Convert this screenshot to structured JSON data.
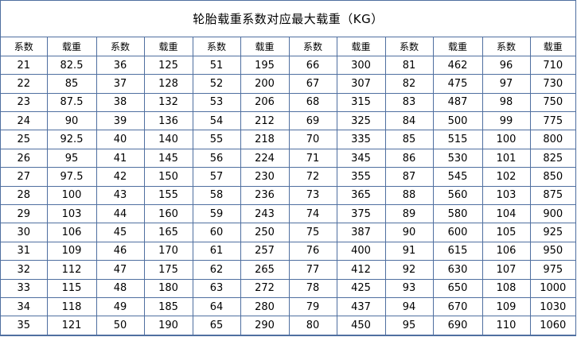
{
  "title": "轮胎载重系数对应最大载重（KG）",
  "headers": [
    "系数",
    "载重",
    "系数",
    "载重",
    "系数",
    "载重",
    "系数",
    "载重",
    "系数",
    "载重",
    "系数",
    "载重"
  ],
  "rows": [
    [
      "21",
      "82.5",
      "36",
      "125",
      "51",
      "195",
      "66",
      "300",
      "81",
      "462",
      "96",
      "710"
    ],
    [
      "22",
      "85",
      "37",
      "128",
      "52",
      "200",
      "67",
      "307",
      "82",
      "475",
      "97",
      "730"
    ],
    [
      "23",
      "87.5",
      "38",
      "132",
      "53",
      "206",
      "68",
      "315",
      "83",
      "487",
      "98",
      "750"
    ],
    [
      "24",
      "90",
      "39",
      "136",
      "54",
      "212",
      "69",
      "325",
      "84",
      "500",
      "99",
      "775"
    ],
    [
      "25",
      "92.5",
      "40",
      "140",
      "55",
      "218",
      "70",
      "335",
      "85",
      "515",
      "100",
      "800"
    ],
    [
      "26",
      "95",
      "41",
      "145",
      "56",
      "224",
      "71",
      "345",
      "86",
      "530",
      "101",
      "825"
    ],
    [
      "27",
      "97.5",
      "42",
      "150",
      "57",
      "230",
      "72",
      "355",
      "87",
      "545",
      "102",
      "850"
    ],
    [
      "28",
      "100",
      "43",
      "155",
      "58",
      "236",
      "73",
      "365",
      "88",
      "560",
      "103",
      "875"
    ],
    [
      "29",
      "103",
      "44",
      "160",
      "59",
      "243",
      "74",
      "375",
      "89",
      "580",
      "104",
      "900"
    ],
    [
      "30",
      "106",
      "45",
      "165",
      "60",
      "250",
      "75",
      "387",
      "90",
      "600",
      "105",
      "925"
    ],
    [
      "31",
      "109",
      "46",
      "170",
      "61",
      "257",
      "76",
      "400",
      "91",
      "615",
      "106",
      "950"
    ],
    [
      "32",
      "112",
      "47",
      "175",
      "62",
      "265",
      "77",
      "412",
      "92",
      "630",
      "107",
      "975"
    ],
    [
      "33",
      "115",
      "48",
      "180",
      "63",
      "272",
      "78",
      "425",
      "93",
      "650",
      "108",
      "1000"
    ],
    [
      "34",
      "118",
      "49",
      "185",
      "64",
      "280",
      "79",
      "437",
      "94",
      "670",
      "109",
      "1030"
    ],
    [
      "35",
      "121",
      "50",
      "190",
      "65",
      "290",
      "80",
      "450",
      "95",
      "690",
      "110",
      "1060"
    ]
  ],
  "colors": {
    "grid_line": "#4f6fa0",
    "background": "#ffffff",
    "text": "#000000"
  }
}
